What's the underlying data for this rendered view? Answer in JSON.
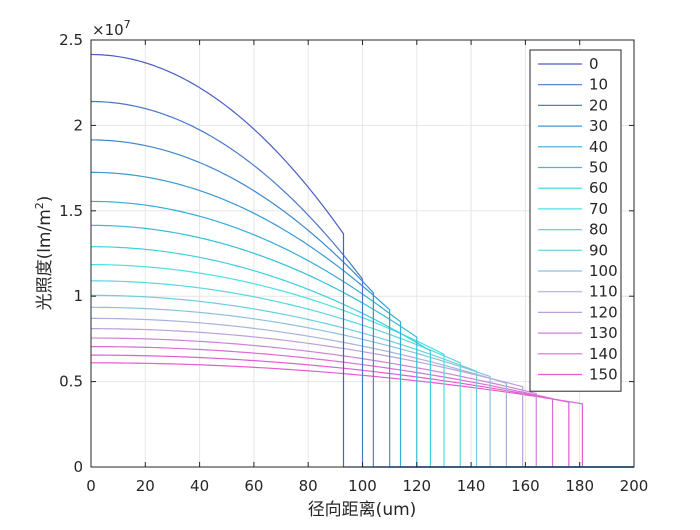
{
  "chart_data": {
    "type": "line",
    "xlabel": "径向距离(um)",
    "ylabel": "光照度(lm/m²)",
    "ylabel_main": "光照度(lm/m",
    "ylabel_sup": "2",
    "ylabel_close": ")",
    "y_exponent_base": "×10",
    "y_exponent_power": "7",
    "xlim": [
      0,
      200
    ],
    "ylim": [
      0,
      25000000
    ],
    "xticks": [
      0,
      20,
      40,
      60,
      80,
      100,
      120,
      140,
      160,
      180,
      200
    ],
    "xtick_labels": [
      "0",
      "20",
      "40",
      "60",
      "80",
      "100",
      "120",
      "140",
      "160",
      "180",
      "200"
    ],
    "yticks": [
      0,
      5000000,
      10000000,
      15000000,
      20000000,
      25000000
    ],
    "ytick_labels": [
      "0",
      "0.5",
      "1",
      "1.5",
      "2",
      "2.5"
    ],
    "grid": true,
    "legend_position": "top-right",
    "profile_note": "each series follows y = y0 * (1 - (1 - e/y0) * (x/r)^2) for x < r, then 0",
    "series": [
      {
        "name": "0",
        "color": "#4a5fc2",
        "y0": 24150000,
        "cutoff": 93,
        "edge": 13650000
      },
      {
        "name": "10",
        "color": "#4a78c8",
        "y0": 21400000,
        "cutoff": 100,
        "edge": 11000000
      },
      {
        "name": "20",
        "color": "#3f87cd",
        "y0": 19150000,
        "cutoff": 104,
        "edge": 10200000
      },
      {
        "name": "30",
        "color": "#3a99d2",
        "y0": 17250000,
        "cutoff": 110,
        "edge": 9200000
      },
      {
        "name": "40",
        "color": "#36acd6",
        "y0": 15550000,
        "cutoff": 114,
        "edge": 8500000
      },
      {
        "name": "50",
        "color": "#36bed8",
        "y0": 14150000,
        "cutoff": 120,
        "edge": 7600000
      },
      {
        "name": "60",
        "color": "#3fd0dc",
        "y0": 12900000,
        "cutoff": 125,
        "edge": 6800000
      },
      {
        "name": "70",
        "color": "#4ce0e0",
        "y0": 11850000,
        "cutoff": 130,
        "edge": 6600000
      },
      {
        "name": "80",
        "color": "#5ad6e0",
        "y0": 10900000,
        "cutoff": 136,
        "edge": 6100000
      },
      {
        "name": "90",
        "color": "#6fcde0",
        "y0": 10050000,
        "cutoff": 142,
        "edge": 5600000
      },
      {
        "name": "100",
        "color": "#8cc1de",
        "y0": 9350000,
        "cutoff": 147,
        "edge": 5300000
      },
      {
        "name": "110",
        "color": "#a8b2dc",
        "y0": 8700000,
        "cutoff": 153,
        "edge": 4900000
      },
      {
        "name": "120",
        "color": "#bd9fda",
        "y0": 8100000,
        "cutoff": 159,
        "edge": 4700000
      },
      {
        "name": "130",
        "color": "#cd84d6",
        "y0": 7550000,
        "cutoff": 164,
        "edge": 4300000
      },
      {
        "name": "140",
        "color": "#da6dd4",
        "y0": 7050000,
        "cutoff": 170,
        "edge": 4000000
      },
      {
        "name": "150",
        "color": "#e35cd2",
        "y0": 6550000,
        "cutoff": 176,
        "edge": 3800000
      }
    ],
    "trailing_segment": {
      "name": "",
      "color": "#e35cd2",
      "y0": 6100000,
      "cutoff": 181,
      "edge": 3700000
    }
  }
}
